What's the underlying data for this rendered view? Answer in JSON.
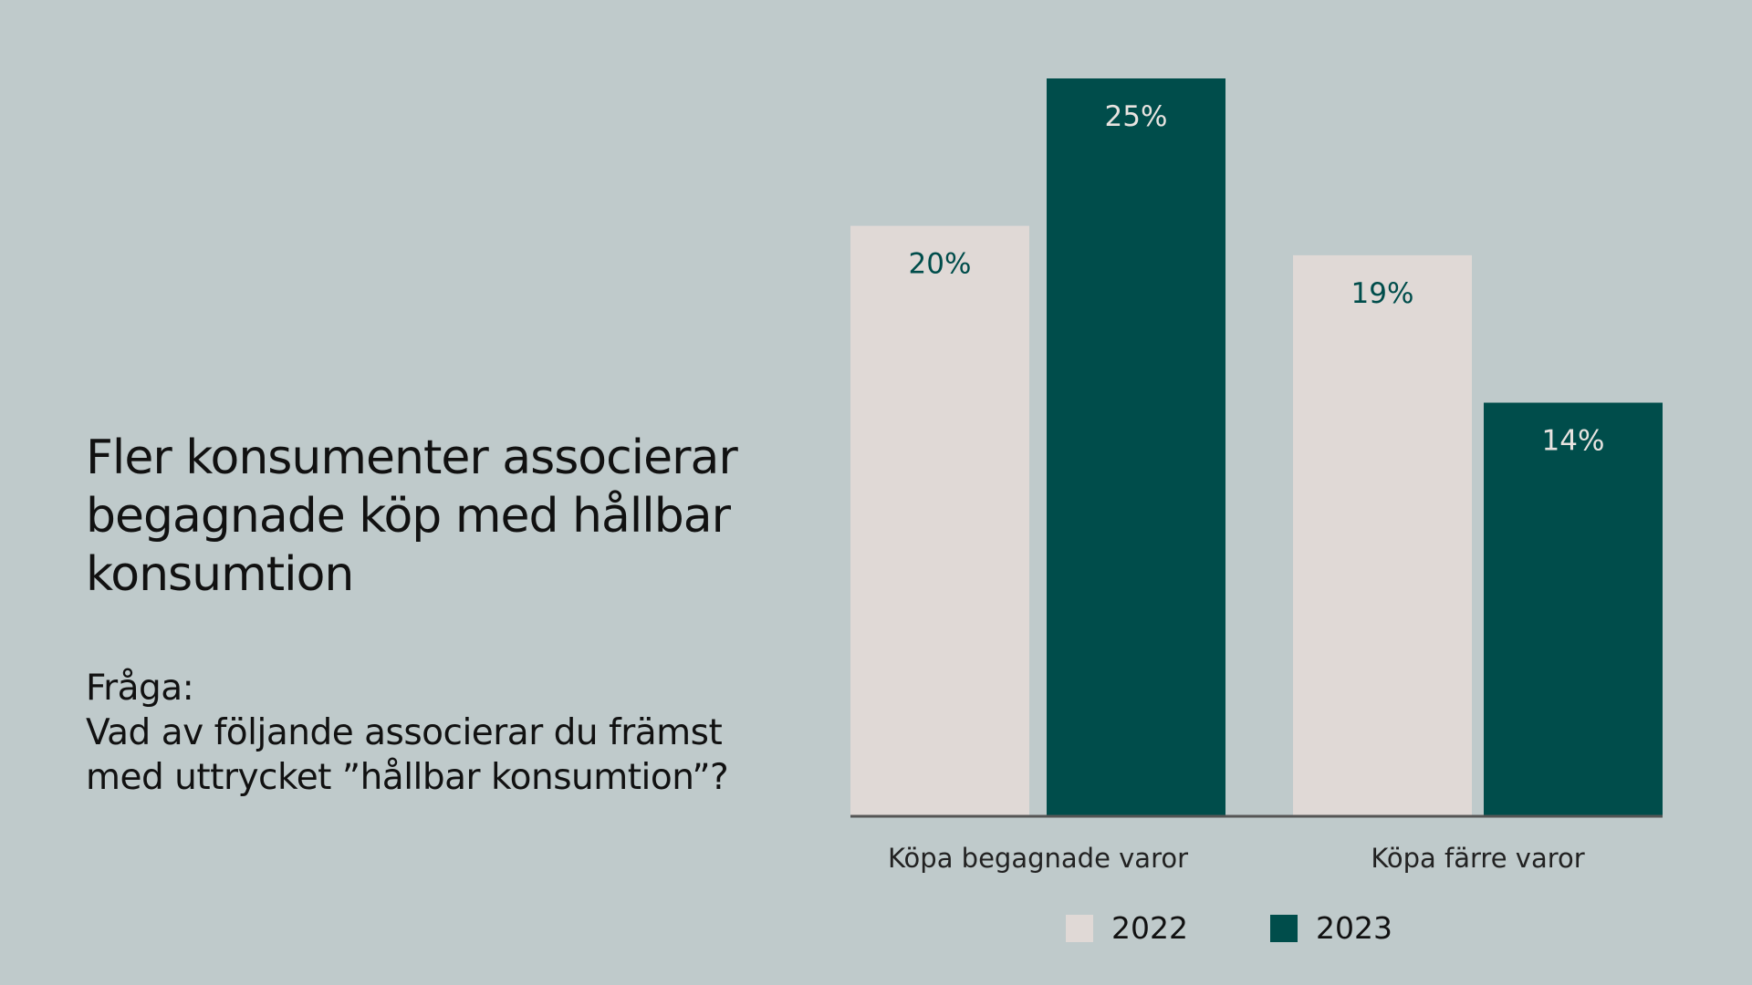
{
  "title": "Fler konsumenter associerar begagnade köp med hållbar konsumtion",
  "question": {
    "lines": [
      "Fråga:",
      "Vad av följande associerar du främst",
      "med uttrycket ”hållbar konsumtion”?"
    ]
  },
  "colors": {
    "background": "#bfcacb",
    "series_2022": "#e0d9d6",
    "series_2023": "#004d4b",
    "label_on_light": "#004d4b",
    "label_on_dark": "#e8e3e0",
    "baseline": "#555555"
  },
  "chart_data": {
    "type": "bar",
    "title": "",
    "xlabel": "",
    "ylabel": "",
    "categories": [
      "Köpa begagnade varor",
      "Köpa färre varor"
    ],
    "series": [
      {
        "name": "2022",
        "values": [
          20,
          19
        ],
        "labels": [
          "20%",
          "19%"
        ]
      },
      {
        "name": "2023",
        "values": [
          25,
          14
        ],
        "labels": [
          "25%",
          "14%"
        ]
      }
    ],
    "ylim": [
      0,
      25
    ],
    "grid": false,
    "legend_position": "bottom"
  }
}
